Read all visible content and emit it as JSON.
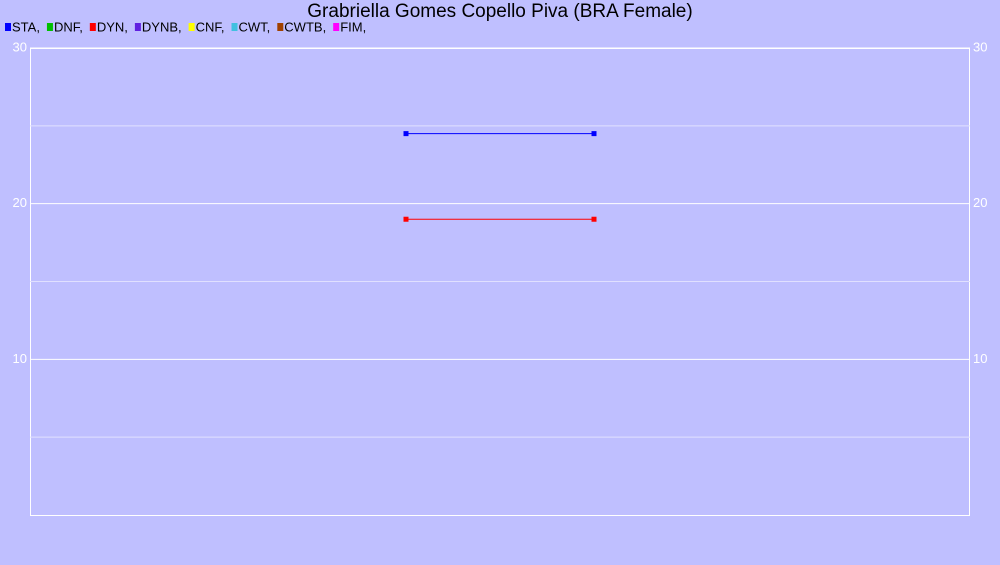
{
  "chart_data": {
    "type": "line",
    "title": "Grabriella Gomes Copello Piva (BRA Female)",
    "categories": [
      null,
      null
    ],
    "series": [
      {
        "name": "STA,",
        "color": "#0000ff",
        "values": [
          24.5,
          24.5
        ]
      },
      {
        "name": "DNF,",
        "color": "#00c000",
        "values": [
          null,
          null
        ]
      },
      {
        "name": "DYN,",
        "color": "#ff0000",
        "values": [
          19,
          19
        ]
      },
      {
        "name": "DYNB,",
        "color": "#6020e0",
        "values": [
          null,
          null
        ]
      },
      {
        "name": "CNF,",
        "color": "#ffff00",
        "values": [
          null,
          null
        ]
      },
      {
        "name": "CWT,",
        "color": "#40c0e0",
        "values": [
          null,
          null
        ]
      },
      {
        "name": "CWTB,",
        "color": "#a04000",
        "values": [
          null,
          null
        ]
      },
      {
        "name": "FIM,",
        "color": "#ff00ff",
        "values": [
          null,
          null
        ]
      }
    ],
    "ylim": [
      0,
      30
    ],
    "yticks": [
      10,
      20,
      30
    ],
    "minor_yticks": [
      5,
      15,
      25
    ],
    "grid": true
  }
}
